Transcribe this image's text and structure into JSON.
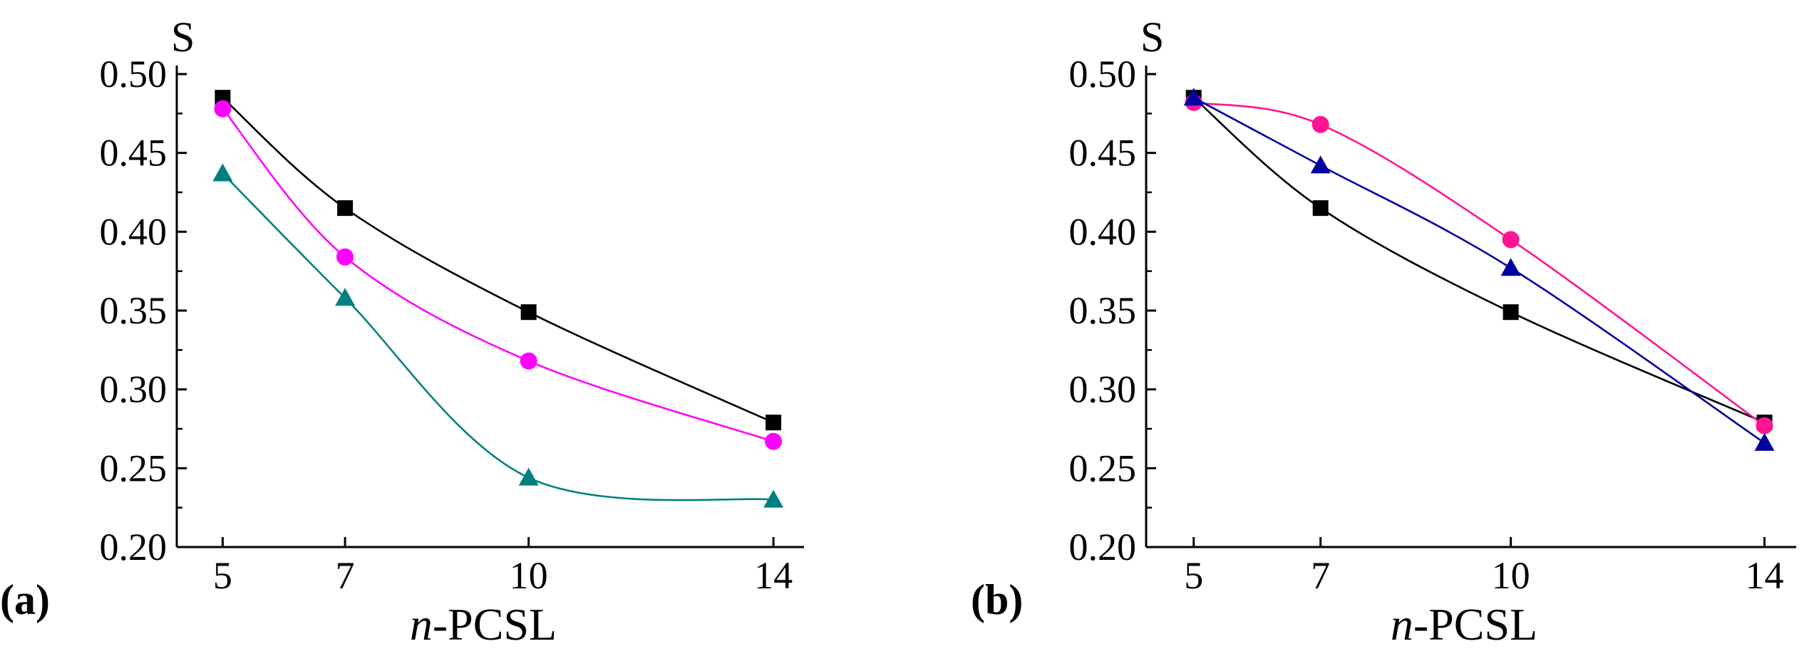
{
  "chart_data": [
    {
      "panel_label": "(a)",
      "type": "line",
      "ylabel": "S",
      "xlabel_italic": "n",
      "xlabel_rest": "-PCSL",
      "x": [
        5,
        7,
        10,
        14
      ],
      "xticks": [
        "5",
        "7",
        "10",
        "14"
      ],
      "xlim": [
        4.25,
        14.5
      ],
      "ylim": [
        0.2,
        0.5
      ],
      "yticks": [
        "0.20",
        "0.25",
        "0.30",
        "0.35",
        "0.40",
        "0.45",
        "0.50"
      ],
      "series": [
        {
          "name": "squares",
          "marker": "square",
          "color": "#000000",
          "values": [
            0.485,
            0.415,
            0.349,
            0.279
          ]
        },
        {
          "name": "circles",
          "marker": "circle",
          "color": "#ff00ff",
          "values": [
            0.478,
            0.384,
            0.318,
            0.267
          ]
        },
        {
          "name": "triangles",
          "marker": "triangle",
          "color": "#008080",
          "values": [
            0.437,
            0.358,
            0.244,
            0.23
          ]
        }
      ]
    },
    {
      "panel_label": "(b)",
      "type": "line",
      "ylabel": "S",
      "xlabel_italic": "n",
      "xlabel_rest": "-PCSL",
      "x": [
        5,
        7,
        10,
        14
      ],
      "xticks": [
        "5",
        "7",
        "10",
        "14"
      ],
      "xlim": [
        4.25,
        14.5
      ],
      "ylim": [
        0.2,
        0.5
      ],
      "yticks": [
        "0.20",
        "0.25",
        "0.30",
        "0.35",
        "0.40",
        "0.45",
        "0.50"
      ],
      "series": [
        {
          "name": "squares",
          "marker": "square",
          "color": "#000000",
          "values": [
            0.485,
            0.415,
            0.349,
            0.279
          ]
        },
        {
          "name": "circles",
          "marker": "circle",
          "color": "#ff1493",
          "values": [
            0.482,
            0.468,
            0.395,
            0.277
          ]
        },
        {
          "name": "triangles",
          "marker": "triangle",
          "color": "#0000a0",
          "values": [
            0.485,
            0.442,
            0.377,
            0.266
          ]
        }
      ]
    }
  ]
}
